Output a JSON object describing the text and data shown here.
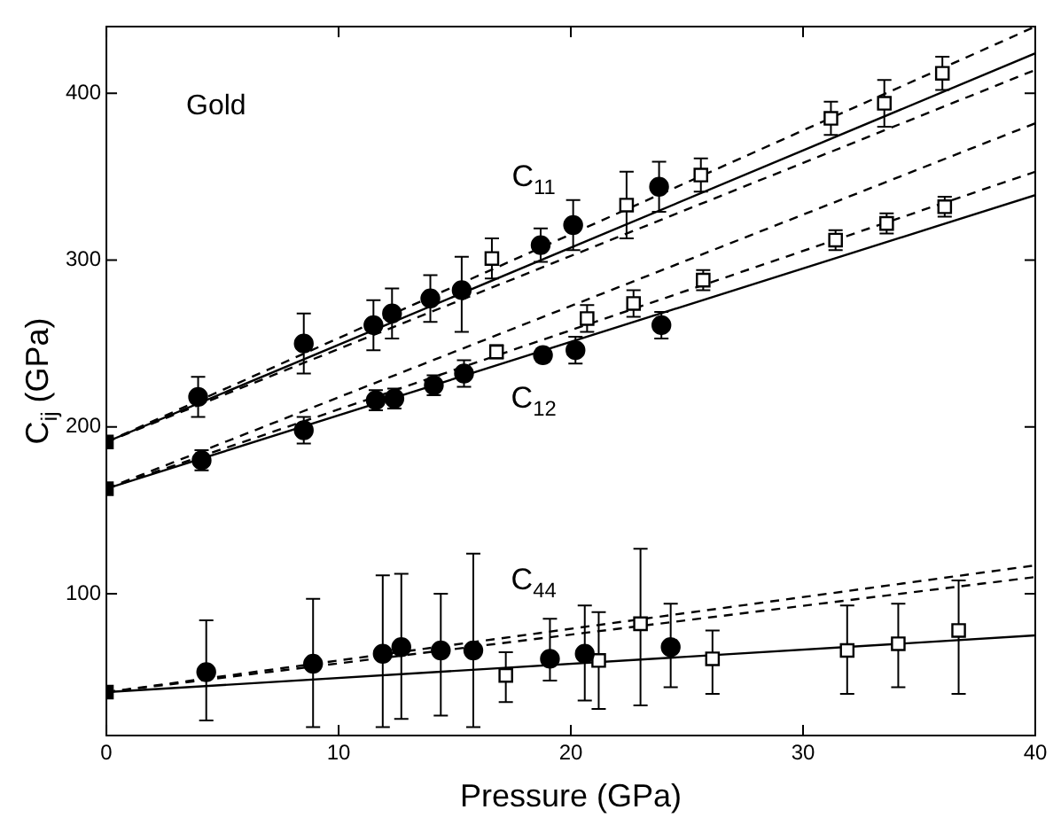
{
  "chart_data": {
    "type": "scatter",
    "xlabel": "Pressure (GPa)",
    "ylabel": "C$_{ij}$ (GPa)",
    "xlim": [
      0,
      40
    ],
    "ylim": [
      15,
      440
    ],
    "xticks": [
      0,
      10,
      20,
      30,
      40
    ],
    "yticks": [
      100,
      200,
      300,
      400
    ],
    "grid": false,
    "legend": false,
    "annotations": [
      "Gold"
    ],
    "series": [
      {
        "type": "line",
        "name": "C$_{11}$",
        "color": "#000000",
        "marker": "none",
        "line_style": "solid",
        "x": [
          0,
          40
        ],
        "values": [
          191,
          424
        ]
      },
      {
        "type": "line",
        "color": "#000000",
        "marker": "none",
        "line_style": "dashed",
        "x": [
          0,
          40
        ],
        "values": [
          191,
          440
        ]
      },
      {
        "type": "line",
        "color": "#000000",
        "marker": "none",
        "line_style": "dashed",
        "x": [
          0,
          40
        ],
        "values": [
          191,
          414
        ]
      },
      {
        "type": "line",
        "name": "C$_{12}$",
        "color": "#000000",
        "marker": "none",
        "line_style": "solid",
        "x": [
          0,
          40
        ],
        "values": [
          163,
          339
        ]
      },
      {
        "type": "line",
        "color": "#000000",
        "marker": "none",
        "line_style": "dashed",
        "x": [
          0,
          40
        ],
        "values": [
          163,
          382
        ]
      },
      {
        "type": "line",
        "color": "#000000",
        "marker": "none",
        "line_style": "dashed",
        "x": [
          0,
          40
        ],
        "values": [
          163,
          353
        ]
      },
      {
        "type": "line",
        "name": "C$_{44}$",
        "color": "#000000",
        "marker": "none",
        "line_style": "solid",
        "x": [
          0,
          40
        ],
        "values": [
          41,
          75
        ]
      },
      {
        "type": "line",
        "color": "#000000",
        "marker": "none",
        "line_style": "dashed",
        "x": [
          0,
          40
        ],
        "values": [
          41,
          117
        ]
      },
      {
        "type": "line",
        "color": "#000000",
        "marker": "none",
        "line_style": "dashed",
        "x": [
          0,
          40
        ],
        "values": [
          41,
          110
        ]
      },
      {
        "type": "scatter",
        "color": "#000000",
        "marker": "circle",
        "x": [
          3.95,
          8.5,
          11.5,
          12.3,
          13.95,
          15.3,
          18.7,
          20.1,
          23.8,
          4.1,
          8.5,
          11.6,
          12.4,
          14.1,
          15.4,
          18.8,
          20.2,
          23.9,
          4.3,
          8.9,
          11.9,
          12.7,
          14.4,
          15.8,
          19.1,
          20.6,
          24.3
        ],
        "values": [
          218,
          250,
          261,
          268,
          277,
          282,
          309,
          321,
          344,
          180,
          198,
          216,
          217,
          225,
          232,
          243,
          246,
          261,
          53,
          58,
          64,
          68,
          66,
          66,
          61,
          64,
          68
        ],
        "errors": [
          12,
          18,
          15,
          15,
          14,
          [
            257,
            302
          ],
          10,
          15,
          15,
          6,
          8,
          6,
          6,
          6,
          8,
          4,
          8,
          8,
          [
            24,
            84
          ],
          [
            20,
            97
          ],
          [
            20,
            111
          ],
          [
            25,
            112
          ],
          [
            27,
            100
          ],
          [
            20,
            124
          ],
          [
            48,
            85
          ],
          [
            36,
            93
          ],
          [
            44,
            94
          ]
        ]
      },
      {
        "type": "scatter",
        "color": "#ffffff",
        "marker": "square",
        "x": [
          16.6,
          22.4,
          25.6,
          31.2,
          33.5,
          36,
          16.8,
          20.7,
          22.7,
          25.7,
          31.4,
          33.6,
          36.1,
          17.2,
          21.2,
          23,
          26.1,
          31.9,
          34.1,
          36.7
        ],
        "values": [
          301,
          333,
          351,
          385,
          394,
          412,
          245,
          265,
          274,
          288,
          312,
          322,
          332,
          51,
          60,
          82,
          61,
          66,
          70,
          78
        ],
        "errors": [
          12,
          20,
          10,
          10,
          14,
          10,
          4,
          8,
          8,
          6,
          6,
          6,
          6,
          [
            35,
            65
          ],
          [
            31,
            89
          ],
          [
            33,
            127
          ],
          [
            40,
            78
          ],
          [
            40,
            93
          ],
          [
            44,
            94
          ],
          [
            40,
            108
          ]
        ]
      },
      {
        "type": "scatter",
        "color": "#000000",
        "marker": "square",
        "x": [
          0,
          0,
          0
        ],
        "values": [
          191,
          163,
          41
        ]
      }
    ]
  }
}
